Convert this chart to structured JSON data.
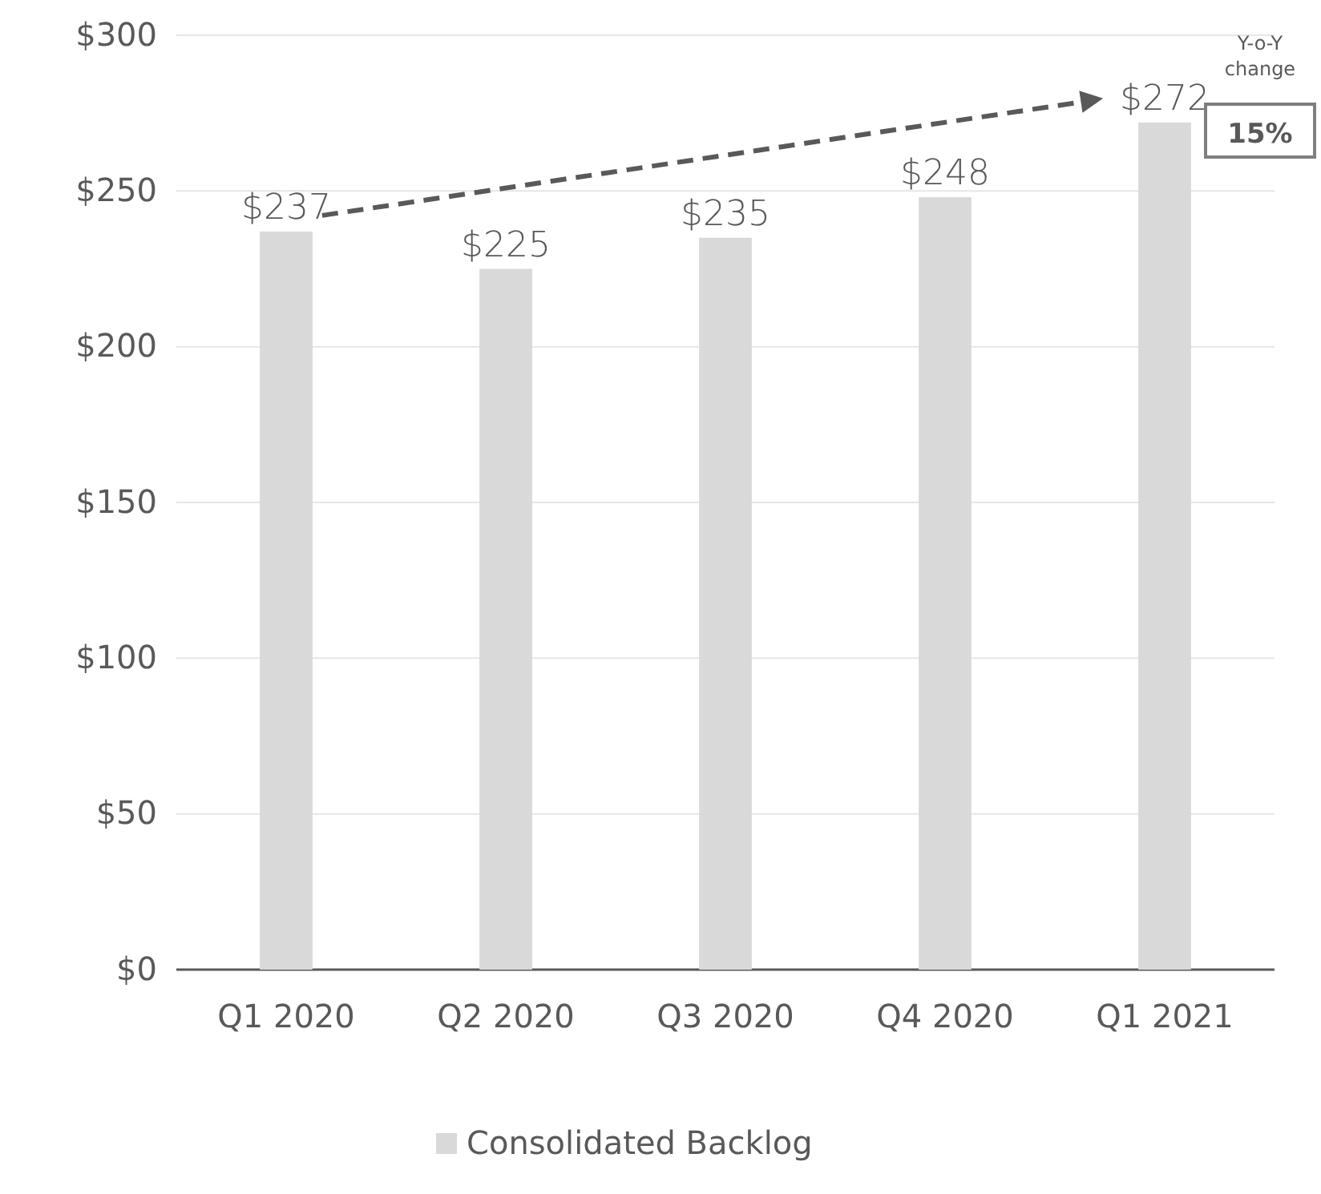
{
  "chart_data": {
    "type": "bar",
    "categories": [
      "Q1 2020",
      "Q2 2020",
      "Q3 2020",
      "Q4 2020",
      "Q1 2021"
    ],
    "series": [
      {
        "name": "Consolidated Backlog",
        "color": "#d9d9d9",
        "values": [
          237,
          225,
          235,
          248,
          272
        ],
        "value_labels": [
          "$237",
          "$225",
          "$235",
          "$248",
          "$272"
        ]
      }
    ],
    "ylim": [
      0,
      300
    ],
    "yticks": [
      {
        "value": 0,
        "label": "$0"
      },
      {
        "value": 50,
        "label": "$50"
      },
      {
        "value": 100,
        "label": "$100"
      },
      {
        "value": 150,
        "label": "$150"
      },
      {
        "value": 200,
        "label": "$200"
      },
      {
        "value": 250,
        "label": "$250"
      },
      {
        "value": 300,
        "label": "$300"
      }
    ],
    "grid": "y",
    "legend": "bottom",
    "annotations": [
      "Y-o-Y change",
      "15%"
    ]
  }
}
